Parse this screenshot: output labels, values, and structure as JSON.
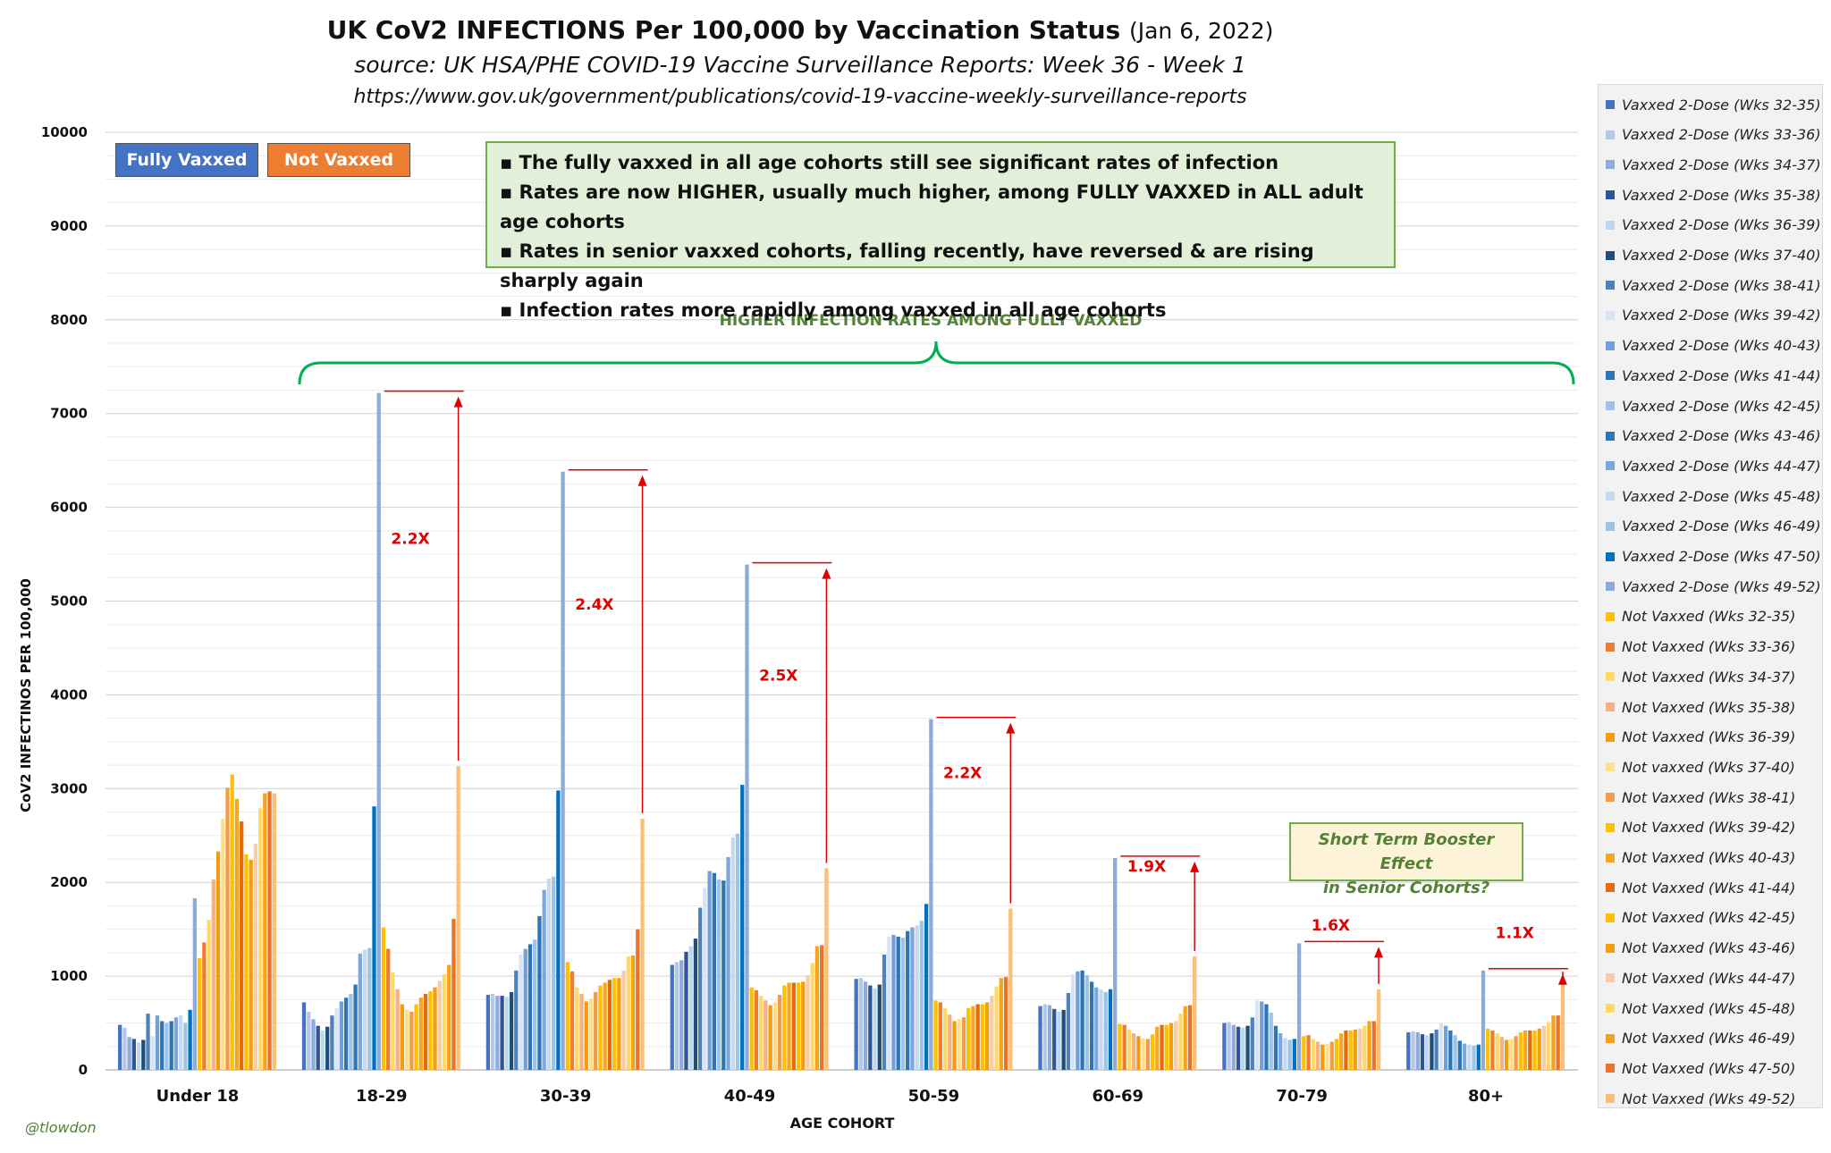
{
  "title": {
    "main": "UK CoV2 INFECTIONS Per 100,000 by Vaccination Status",
    "date": "(Jan 6, 2022)",
    "source": "source: UK HSA/PHE COVID-19 Vaccine Surveillance Reports: Week 36 - Week 1",
    "url": "https://www.gov.uk/government/publications/covid-19-vaccine-weekly-surveillance-reports"
  },
  "key_buttons": {
    "vaxxed": "Fully Vaxxed",
    "not_vaxxed": "Not Vaxxed"
  },
  "notes": [
    "The fully vaxxed in all age cohorts still see significant rates of infection",
    "Rates are now HIGHER, usually much higher, among FULLY VAXXED in ALL adult age cohorts",
    "Rates in senior vaxxed cohorts, falling recently, have reversed & are rising sharply again",
    "Infection rates more rapidly among vaxxed in all age cohorts"
  ],
  "bracket_label": "HIGHER INFECTION RATES AMONG FULLY VAXXED",
  "booster_note": [
    "Short Term Booster Effect",
    "in Senior Cohorts?"
  ],
  "watermark": "@tlowdon",
  "ratios": [
    "2.2X",
    "2.4X",
    "2.5X",
    "2.2X",
    "1.9X",
    "1.6X",
    "1.1X"
  ],
  "colors": {
    "vaxxed": [
      "#4472c4",
      "#b4c7e7",
      "#8faadc",
      "#2f5597",
      "#bdd7ee",
      "#1f4e79",
      "#4f81bd",
      "#dae3f3",
      "#6fa0dc",
      "#2e75b6",
      "#9dc3e6",
      "#2e75b6",
      "#7ea6d8",
      "#c5d9f1",
      "#9dc3e6",
      "#0070c0",
      "#8eaadb"
    ],
    "not_vaxxed": [
      "#ffc000",
      "#ed7d31",
      "#ffd966",
      "#f4b183",
      "#f39c12",
      "#ffe08a",
      "#f19c4b",
      "#ffc000",
      "#f5a623",
      "#e46c0a",
      "#ffc000",
      "#f59e0b",
      "#f8cbad",
      "#ffd966",
      "#f7a21b",
      "#e8742a",
      "#fbbf77"
    ],
    "ratio_red": "#e00000",
    "bracket_green": "#00b050",
    "text_green": "#548235"
  },
  "chart_data": {
    "type": "bar",
    "ylabel": "CoV2 INFECTINOS  PER 100,000",
    "xlabel": "AGE COHORT",
    "ylim": [
      0,
      10000
    ],
    "yticks": [
      "0",
      "1000",
      "2000",
      "3000",
      "4000",
      "5000",
      "6000",
      "7000",
      "8000",
      "9000",
      "10000"
    ],
    "categories": [
      "Under 18",
      "18-29",
      "30-39",
      "40-49",
      "50-59",
      "60-69",
      "70-79",
      "80+"
    ],
    "series": [
      {
        "name": "Vaxxed 2-Dose (Wks 32-35)",
        "group": "vaxxed",
        "values": [
          480,
          720,
          800,
          1120,
          970,
          680,
          500,
          400
        ]
      },
      {
        "name": "Vaxxed 2-Dose (Wks 33-36)",
        "group": "vaxxed",
        "values": [
          450,
          620,
          810,
          1150,
          980,
          700,
          510,
          410
        ]
      },
      {
        "name": "Vaxxed 2-Dose (Wks 34-37)",
        "group": "vaxxed",
        "values": [
          350,
          540,
          790,
          1170,
          940,
          690,
          480,
          400
        ]
      },
      {
        "name": "Vaxxed 2-Dose (Wks 35-38)",
        "group": "vaxxed",
        "values": [
          330,
          470,
          790,
          1260,
          900,
          650,
          460,
          380
        ]
      },
      {
        "name": "Vaxxed 2-Dose (Wks 36-39)",
        "group": "vaxxed",
        "values": [
          290,
          420,
          780,
          1320,
          870,
          620,
          450,
          370
        ]
      },
      {
        "name": "Vaxxed 2-Dose (Wks 37-40)",
        "group": "vaxxed",
        "values": [
          320,
          460,
          830,
          1400,
          910,
          640,
          470,
          390
        ]
      },
      {
        "name": "Vaxxed 2-Dose (Wks 38-41)",
        "group": "vaxxed",
        "values": [
          600,
          580,
          1060,
          1730,
          1230,
          820,
          560,
          430
        ]
      },
      {
        "name": "Vaxxed 2-Dose (Wks 39-42)",
        "group": "vaxxed",
        "values": [
          360,
          660,
          1230,
          1940,
          1420,
          1020,
          740,
          500
        ]
      },
      {
        "name": "Vaxxed 2-Dose (Wks 40-43)",
        "group": "vaxxed",
        "values": [
          580,
          730,
          1290,
          2120,
          1440,
          1050,
          730,
          470
        ]
      },
      {
        "name": "Vaxxed 2-Dose (Wks 41-44)",
        "group": "vaxxed",
        "values": [
          520,
          770,
          1340,
          2100,
          1420,
          1060,
          700,
          420
        ]
      },
      {
        "name": "Vaxxed 2-Dose (Wks 42-45)",
        "group": "vaxxed",
        "values": [
          500,
          810,
          1390,
          2030,
          1410,
          1010,
          610,
          370
        ]
      },
      {
        "name": "Vaxxed 2-Dose (Wks 43-46)",
        "group": "vaxxed",
        "values": [
          520,
          910,
          1640,
          2020,
          1480,
          940,
          470,
          310
        ]
      },
      {
        "name": "Vaxxed 2-Dose (Wks 44-47)",
        "group": "vaxxed",
        "values": [
          560,
          1240,
          1920,
          2270,
          1520,
          880,
          390,
          280
        ]
      },
      {
        "name": "Vaxxed 2-Dose (Wks 45-48)",
        "group": "vaxxed",
        "values": [
          580,
          1280,
          2040,
          2480,
          1540,
          860,
          340,
          270
        ]
      },
      {
        "name": "Vaxxed 2-Dose (Wks 46-49)",
        "group": "vaxxed",
        "values": [
          500,
          1300,
          2060,
          2520,
          1590,
          830,
          320,
          260
        ]
      },
      {
        "name": "Vaxxed 2-Dose (Wks 47-50)",
        "group": "vaxxed",
        "values": [
          640,
          2810,
          2980,
          3040,
          1770,
          860,
          330,
          270
        ]
      },
      {
        "name": "Vaxxed 2-Dose (Wks 49-52)",
        "group": "vaxxed",
        "values": [
          1830,
          7220,
          6380,
          5390,
          3740,
          2260,
          1350,
          1060
        ]
      },
      {
        "name": "Not Vaxxed (Wks 32-35)",
        "group": "not_vaxxed",
        "values": [
          1190,
          1520,
          1150,
          880,
          740,
          490,
          360,
          440
        ]
      },
      {
        "name": "Not Vaxxed (Wks 33-36)",
        "group": "not_vaxxed",
        "values": [
          1360,
          1290,
          1050,
          850,
          720,
          480,
          370,
          420
        ]
      },
      {
        "name": "Not Vaxxed (Wks 34-37)",
        "group": "not_vaxxed",
        "values": [
          1600,
          1040,
          880,
          790,
          660,
          430,
          330,
          390
        ]
      },
      {
        "name": "Not Vaxxed (Wks 35-38)",
        "group": "not_vaxxed",
        "values": [
          2030,
          860,
          810,
          740,
          590,
          390,
          300,
          350
        ]
      },
      {
        "name": "Not Vaxxed (Wks 36-39)",
        "group": "not_vaxxed",
        "values": [
          2330,
          700,
          730,
          690,
          520,
          360,
          270,
          320
        ]
      },
      {
        "name": "Not vaxxed (Wks 37-40)",
        "group": "not_vaxxed",
        "values": [
          2680,
          640,
          760,
          720,
          540,
          340,
          280,
          330
        ]
      },
      {
        "name": "Not Vaxxed (Wks 38-41)",
        "group": "not_vaxxed",
        "values": [
          3010,
          620,
          830,
          800,
          560,
          330,
          300,
          360
        ]
      },
      {
        "name": "Not Vaxxed (Wks 39-42)",
        "group": "not_vaxxed",
        "values": [
          3150,
          700,
          900,
          900,
          660,
          380,
          330,
          400
        ]
      },
      {
        "name": "Not Vaxxed (Wks 40-43)",
        "group": "not_vaxxed",
        "values": [
          2890,
          770,
          930,
          930,
          680,
          460,
          390,
          420
        ]
      },
      {
        "name": "Not Vaxxed (Wks 41-44)",
        "group": "not_vaxxed",
        "values": [
          2650,
          810,
          960,
          930,
          700,
          480,
          420,
          420
        ]
      },
      {
        "name": "Not Vaxxed (Wks 42-45)",
        "group": "not_vaxxed",
        "values": [
          2300,
          840,
          980,
          930,
          700,
          480,
          420,
          420
        ]
      },
      {
        "name": "Not Vaxxed (Wks 43-46)",
        "group": "not_vaxxed",
        "values": [
          2240,
          880,
          980,
          940,
          720,
          500,
          430,
          440
        ]
      },
      {
        "name": "Not Vaxxed (Wks 44-47)",
        "group": "not_vaxxed",
        "values": [
          2410,
          950,
          1060,
          1010,
          790,
          520,
          440,
          470
        ]
      },
      {
        "name": "Not Vaxxed (Wks 45-48)",
        "group": "not_vaxxed",
        "values": [
          2790,
          1020,
          1210,
          1140,
          890,
          600,
          470,
          510
        ]
      },
      {
        "name": "Not Vaxxed (Wks 46-49)",
        "group": "not_vaxxed",
        "values": [
          2950,
          1120,
          1220,
          1320,
          980,
          680,
          520,
          580
        ]
      },
      {
        "name": "Not Vaxxed (Wks 47-50)",
        "group": "not_vaxxed",
        "values": [
          2970,
          1610,
          1500,
          1330,
          990,
          690,
          520,
          580
        ]
      },
      {
        "name": "Not Vaxxed (Wks 49-52)",
        "group": "not_vaxxed",
        "values": [
          2950,
          3240,
          2680,
          2150,
          1720,
          1210,
          860,
          990
        ]
      }
    ]
  }
}
